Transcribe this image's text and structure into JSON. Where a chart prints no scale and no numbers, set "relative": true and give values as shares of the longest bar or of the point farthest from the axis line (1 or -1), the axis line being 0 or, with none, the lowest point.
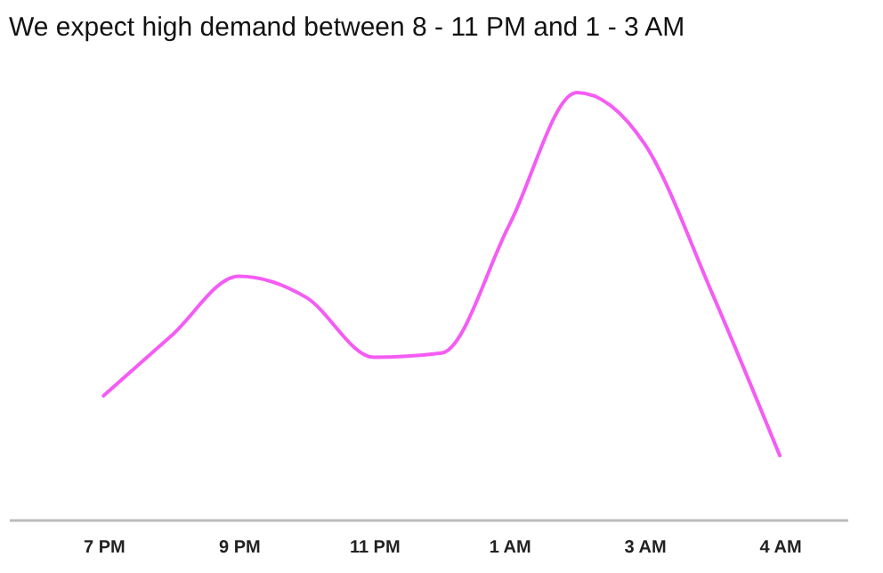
{
  "chart_data": {
    "type": "line",
    "title": "We expect high demand between 8 - 11 PM and 1 - 3 AM",
    "relative": true,
    "categories": [
      "7 PM",
      null,
      "9 PM",
      null,
      "11 PM",
      null,
      "1 AM",
      null,
      "3 AM",
      null,
      "4 AM"
    ],
    "series": [
      {
        "color": "#f45cf4",
        "values": [
          0.29,
          0.43,
          0.57,
          0.52,
          0.38,
          0.39,
          0.69,
          1,
          0.88,
          0.53,
          0.15
        ]
      }
    ],
    "grid": false,
    "legend": false,
    "marker": "none",
    "line_style": "solid"
  }
}
